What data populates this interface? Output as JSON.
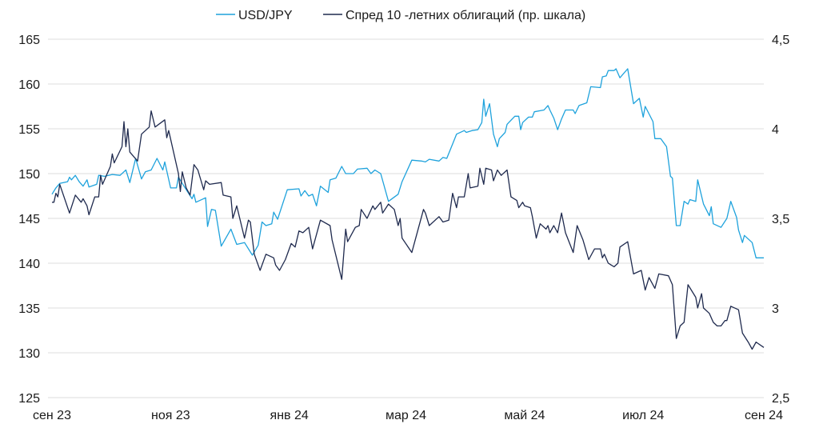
{
  "chart_data": {
    "type": "line",
    "title": "",
    "legend_position": "top-center",
    "legend": [
      "USD/JPY",
      "Спред 10 -летних облигаций (пр. шкала)"
    ],
    "x_unit": "days since 1 Sep 2023",
    "x_range": [
      0,
      366
    ],
    "x_ticks": [
      {
        "day": 0,
        "label": "сен 23"
      },
      {
        "day": 61,
        "label": "ноя 23"
      },
      {
        "day": 122,
        "label": "янв 24"
      },
      {
        "day": 182,
        "label": "мар 24"
      },
      {
        "day": 243,
        "label": "май 24"
      },
      {
        "day": 304,
        "label": "июл 24"
      },
      {
        "day": 366,
        "label": "сен 24"
      }
    ],
    "y_left": {
      "range": [
        125,
        165
      ],
      "ticks": [
        "125",
        "130",
        "135",
        "140",
        "145",
        "150",
        "155",
        "160",
        "165"
      ]
    },
    "y_right": {
      "range": [
        2.5,
        4.5
      ],
      "ticks": [
        "2,5",
        "3",
        "3,5",
        "4",
        "4,5"
      ]
    },
    "grid": true,
    "series": [
      {
        "name": "USD/JPY",
        "axis": "left",
        "color": "#1ea2dc",
        "points": [
          [
            0,
            147.7
          ],
          [
            2,
            148.4
          ],
          [
            4,
            148.9
          ],
          [
            8,
            149.1
          ],
          [
            9,
            149.6
          ],
          [
            10,
            149.3
          ],
          [
            12,
            149.8
          ],
          [
            14,
            149.1
          ],
          [
            16,
            148.6
          ],
          [
            18,
            149.3
          ],
          [
            19,
            148.5
          ],
          [
            23,
            148.8
          ],
          [
            24,
            149.8
          ],
          [
            27,
            149.7
          ],
          [
            31,
            149.9
          ],
          [
            35,
            149.8
          ],
          [
            38,
            150.4
          ],
          [
            40,
            149.0
          ],
          [
            43,
            151.7
          ],
          [
            46,
            149.4
          ],
          [
            48,
            150.2
          ],
          [
            51,
            150.4
          ],
          [
            54,
            151.7
          ],
          [
            57,
            150.4
          ],
          [
            58,
            151.3
          ],
          [
            61,
            148.4
          ],
          [
            64,
            148.4
          ],
          [
            65,
            149.6
          ],
          [
            67,
            148.9
          ],
          [
            72,
            147.2
          ],
          [
            73,
            147.7
          ],
          [
            74,
            146.8
          ],
          [
            79,
            147.3
          ],
          [
            80,
            144.1
          ],
          [
            82,
            146.0
          ],
          [
            84,
            145.9
          ],
          [
            87,
            141.9
          ],
          [
            92,
            143.8
          ],
          [
            95,
            142.1
          ],
          [
            99,
            142.3
          ],
          [
            103,
            140.9
          ],
          [
            106,
            142.0
          ],
          [
            108,
            144.6
          ],
          [
            110,
            144.2
          ],
          [
            113,
            144.4
          ],
          [
            114,
            145.7
          ],
          [
            116,
            144.9
          ],
          [
            121,
            148.2
          ],
          [
            127,
            148.3
          ],
          [
            128,
            147.5
          ],
          [
            130,
            148.1
          ],
          [
            132,
            147.5
          ],
          [
            134,
            147.7
          ],
          [
            136,
            146.4
          ],
          [
            138,
            148.6
          ],
          [
            142,
            147.9
          ],
          [
            143,
            149.3
          ],
          [
            146,
            149.5
          ],
          [
            149,
            150.8
          ],
          [
            151,
            150.0
          ],
          [
            155,
            150.0
          ],
          [
            157,
            150.5
          ],
          [
            162,
            150.6
          ],
          [
            164,
            150.0
          ],
          [
            166,
            150.4
          ],
          [
            169,
            150.0
          ],
          [
            173,
            146.9
          ],
          [
            178,
            147.7
          ],
          [
            180,
            149.1
          ],
          [
            185,
            151.5
          ],
          [
            190,
            151.4
          ],
          [
            192,
            151.3
          ],
          [
            194,
            151.6
          ],
          [
            199,
            151.4
          ],
          [
            201,
            151.8
          ],
          [
            203,
            151.7
          ],
          [
            206,
            153.3
          ],
          [
            208,
            154.4
          ],
          [
            212,
            154.8
          ],
          [
            213,
            154.6
          ],
          [
            216,
            154.8
          ],
          [
            219,
            154.9
          ],
          [
            221,
            155.7
          ],
          [
            222,
            158.3
          ],
          [
            223,
            156.4
          ],
          [
            225,
            157.8
          ],
          [
            227,
            154.4
          ],
          [
            229,
            153.0
          ],
          [
            230,
            153.9
          ],
          [
            233,
            154.6
          ],
          [
            234,
            155.5
          ],
          [
            238,
            156.4
          ],
          [
            240,
            156.4
          ],
          [
            241,
            154.9
          ],
          [
            242,
            155.7
          ],
          [
            245,
            156.3
          ],
          [
            247,
            156.3
          ],
          [
            248,
            156.9
          ],
          [
            253,
            157.1
          ],
          [
            255,
            157.6
          ],
          [
            256,
            157.1
          ],
          [
            258,
            156.2
          ],
          [
            260,
            154.9
          ],
          [
            262,
            156.1
          ],
          [
            264,
            157.1
          ],
          [
            268,
            157.1
          ],
          [
            269,
            156.7
          ],
          [
            271,
            157.6
          ],
          [
            275,
            157.9
          ],
          [
            277,
            159.7
          ],
          [
            282,
            159.6
          ],
          [
            283,
            160.8
          ],
          [
            285,
            160.9
          ],
          [
            286,
            161.5
          ],
          [
            289,
            161.5
          ],
          [
            290,
            161.7
          ],
          [
            292,
            160.7
          ],
          [
            296,
            161.7
          ],
          [
            299,
            157.8
          ],
          [
            302,
            158.4
          ],
          [
            304,
            156.3
          ],
          [
            305,
            157.5
          ],
          [
            309,
            155.8
          ],
          [
            310,
            153.9
          ],
          [
            313,
            153.9
          ],
          [
            316,
            153.0
          ],
          [
            318,
            149.7
          ],
          [
            319,
            149.5
          ],
          [
            321,
            144.2
          ],
          [
            323,
            144.2
          ],
          [
            325,
            146.9
          ],
          [
            327,
            146.6
          ],
          [
            328,
            147.1
          ],
          [
            331,
            146.9
          ],
          [
            332,
            149.3
          ],
          [
            335,
            146.6
          ],
          [
            338,
            145.3
          ],
          [
            339,
            146.3
          ],
          [
            340,
            144.4
          ],
          [
            344,
            144.0
          ],
          [
            347,
            145.0
          ],
          [
            349,
            146.9
          ],
          [
            352,
            145.1
          ],
          [
            353,
            143.7
          ],
          [
            355,
            142.3
          ],
          [
            356,
            143.1
          ],
          [
            360,
            142.3
          ],
          [
            362,
            140.6
          ],
          [
            366,
            140.6
          ]
        ]
      },
      {
        "name": "Спред 10 -летних облигаций (пр. шкала)",
        "axis": "right",
        "color": "#1f2a4e",
        "points": [
          [
            0,
            3.59
          ],
          [
            1,
            3.59
          ],
          [
            2,
            3.64
          ],
          [
            3,
            3.62
          ],
          [
            4,
            3.69
          ],
          [
            9,
            3.53
          ],
          [
            12,
            3.63
          ],
          [
            15,
            3.59
          ],
          [
            16,
            3.61
          ],
          [
            18,
            3.57
          ],
          [
            19,
            3.52
          ],
          [
            22,
            3.62
          ],
          [
            24,
            3.62
          ],
          [
            25,
            3.74
          ],
          [
            26,
            3.69
          ],
          [
            30,
            3.79
          ],
          [
            31,
            3.86
          ],
          [
            32,
            3.81
          ],
          [
            36,
            3.9
          ],
          [
            37,
            4.04
          ],
          [
            38,
            3.9
          ],
          [
            39,
            4.0
          ],
          [
            40,
            3.87
          ],
          [
            44,
            3.82
          ],
          [
            46,
            3.97
          ],
          [
            50,
            4.01
          ],
          [
            51,
            4.1
          ],
          [
            53,
            4.01
          ],
          [
            58,
            4.05
          ],
          [
            59,
            3.95
          ],
          [
            60,
            3.99
          ],
          [
            65,
            3.75
          ],
          [
            66,
            3.65
          ],
          [
            67,
            3.76
          ],
          [
            69,
            3.67
          ],
          [
            71,
            3.63
          ],
          [
            73,
            3.8
          ],
          [
            75,
            3.77
          ],
          [
            78,
            3.66
          ],
          [
            79,
            3.71
          ],
          [
            81,
            3.69
          ],
          [
            87,
            3.7
          ],
          [
            88,
            3.63
          ],
          [
            92,
            3.62
          ],
          [
            93,
            3.5
          ],
          [
            95,
            3.57
          ],
          [
            99,
            3.39
          ],
          [
            101,
            3.49
          ],
          [
            102,
            3.48
          ],
          [
            104,
            3.3
          ],
          [
            107,
            3.21
          ],
          [
            110,
            3.3
          ],
          [
            114,
            3.28
          ],
          [
            115,
            3.24
          ],
          [
            117,
            3.21
          ],
          [
            120,
            3.27
          ],
          [
            123,
            3.36
          ],
          [
            125,
            3.34
          ],
          [
            127,
            3.43
          ],
          [
            129,
            3.42
          ],
          [
            132,
            3.45
          ],
          [
            134,
            3.33
          ],
          [
            138,
            3.49
          ],
          [
            143,
            3.46
          ],
          [
            144,
            3.38
          ],
          [
            149,
            3.16
          ],
          [
            151,
            3.44
          ],
          [
            152,
            3.37
          ],
          [
            156,
            3.45
          ],
          [
            158,
            3.46
          ],
          [
            159,
            3.55
          ],
          [
            162,
            3.5
          ],
          [
            165,
            3.57
          ],
          [
            166,
            3.55
          ],
          [
            169,
            3.59
          ],
          [
            170,
            3.53
          ],
          [
            173,
            3.58
          ],
          [
            176,
            3.55
          ],
          [
            178,
            3.46
          ],
          [
            179,
            3.5
          ],
          [
            180,
            3.39
          ],
          [
            185,
            3.31
          ],
          [
            191,
            3.55
          ],
          [
            192,
            3.53
          ],
          [
            194,
            3.46
          ],
          [
            199,
            3.51
          ],
          [
            201,
            3.48
          ],
          [
            204,
            3.49
          ],
          [
            206,
            3.64
          ],
          [
            208,
            3.56
          ],
          [
            209,
            3.62
          ],
          [
            212,
            3.62
          ],
          [
            214,
            3.75
          ],
          [
            215,
            3.67
          ],
          [
            219,
            3.68
          ],
          [
            220,
            3.78
          ],
          [
            222,
            3.69
          ],
          [
            223,
            3.78
          ],
          [
            226,
            3.77
          ],
          [
            227,
            3.71
          ],
          [
            229,
            3.77
          ],
          [
            231,
            3.74
          ],
          [
            234,
            3.77
          ],
          [
            236,
            3.62
          ],
          [
            239,
            3.6
          ],
          [
            240,
            3.56
          ],
          [
            242,
            3.59
          ],
          [
            243,
            3.57
          ],
          [
            246,
            3.56
          ],
          [
            247,
            3.51
          ],
          [
            249,
            3.39
          ],
          [
            251,
            3.47
          ],
          [
            254,
            3.44
          ],
          [
            255,
            3.46
          ],
          [
            256,
            3.42
          ],
          [
            258,
            3.46
          ],
          [
            260,
            3.42
          ],
          [
            262,
            3.53
          ],
          [
            264,
            3.42
          ],
          [
            268,
            3.31
          ],
          [
            270,
            3.46
          ],
          [
            273,
            3.38
          ],
          [
            276,
            3.27
          ],
          [
            279,
            3.33
          ],
          [
            282,
            3.33
          ],
          [
            283,
            3.28
          ],
          [
            284,
            3.3
          ],
          [
            286,
            3.25
          ],
          [
            289,
            3.23
          ],
          [
            291,
            3.25
          ],
          [
            292,
            3.34
          ],
          [
            296,
            3.37
          ],
          [
            299,
            3.19
          ],
          [
            303,
            3.21
          ],
          [
            305,
            3.1
          ],
          [
            307,
            3.17
          ],
          [
            310,
            3.11
          ],
          [
            312,
            3.19
          ],
          [
            317,
            3.18
          ],
          [
            319,
            3.13
          ],
          [
            321,
            2.83
          ],
          [
            323,
            2.9
          ],
          [
            325,
            2.92
          ],
          [
            327,
            3.13
          ],
          [
            331,
            3.06
          ],
          [
            332,
            3.0
          ],
          [
            334,
            3.08
          ],
          [
            335,
            3.0
          ],
          [
            338,
            2.97
          ],
          [
            340,
            2.92
          ],
          [
            342,
            2.9
          ],
          [
            344,
            2.9
          ],
          [
            346,
            2.93
          ],
          [
            347,
            2.93
          ],
          [
            349,
            3.01
          ],
          [
            353,
            2.99
          ],
          [
            355,
            2.86
          ],
          [
            358,
            2.81
          ],
          [
            360,
            2.77
          ],
          [
            362,
            2.81
          ],
          [
            366,
            2.78
          ]
        ]
      }
    ]
  }
}
